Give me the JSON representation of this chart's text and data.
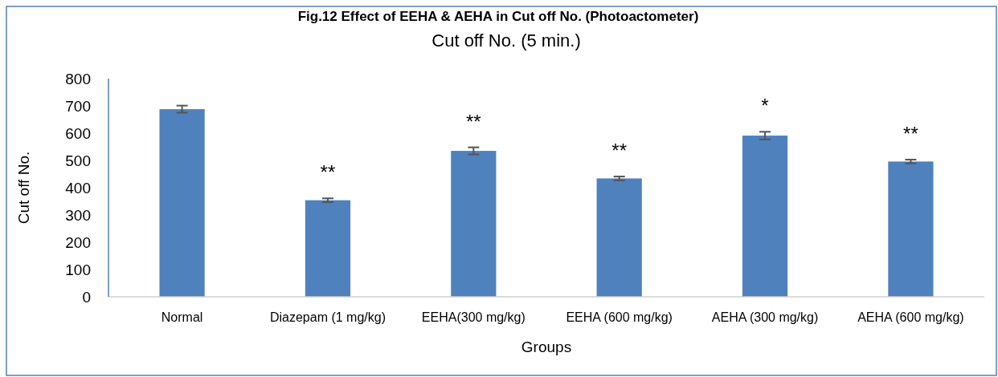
{
  "chart_data": {
    "type": "bar",
    "title": "Fig.12 Effect of EEHA & AEHA in Cut off No. (Photoactometer)",
    "subtitle": "Cut off No. (5 min.)",
    "xlabel": "Groups",
    "ylabel": "Cut off No.",
    "categories": [
      "Normal",
      "Diazepam (1 mg/kg)",
      "EEHA(300 mg/kg)",
      "EEHA (600 mg/kg)",
      "AEHA (300 mg/kg)",
      "AEHA (600 mg/kg)"
    ],
    "values": [
      688,
      354,
      535,
      434,
      591,
      496
    ],
    "errors": [
      13,
      7,
      13,
      7,
      14,
      7
    ],
    "color": "#4f81bd",
    "ylim": [
      0,
      800
    ],
    "yticks": [
      0,
      100,
      200,
      300,
      400,
      500,
      600,
      700,
      800
    ],
    "grid": false,
    "annotations": [
      {
        "text": "**",
        "x": "Diazepam (1 mg/kg)",
        "y": 354
      },
      {
        "text": "**",
        "x": "EEHA(300 mg/kg)",
        "y": 535
      },
      {
        "text": "**",
        "x": "EEHA (600 mg/kg)",
        "y": 434
      },
      {
        "text": "*",
        "x": "AEHA (300 mg/kg)",
        "y": 591
      },
      {
        "text": "**",
        "x": "AEHA (600 mg/kg)",
        "y": 496
      }
    ]
  }
}
